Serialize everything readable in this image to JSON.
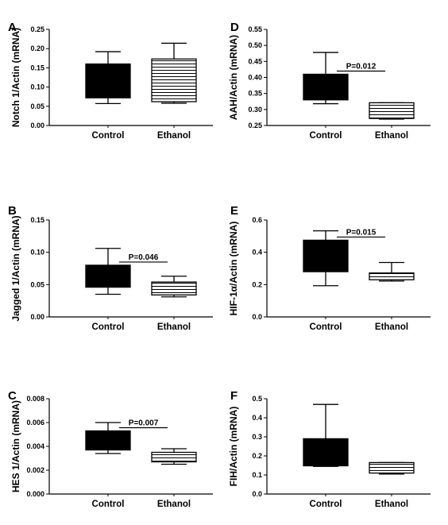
{
  "chart_data": [
    {
      "panel": "A",
      "type": "box",
      "ylabel": "Notch 1/Actin (mRNA)",
      "ylim": [
        0,
        0.25
      ],
      "yticks": [
        "0.00",
        "0.05",
        "0.10",
        "0.15",
        "0.20",
        "0.25"
      ],
      "categories": [
        "Control",
        "Ethanol"
      ],
      "boxes": [
        {
          "category": "Control",
          "whisker_low": 0.057,
          "q1": 0.072,
          "q3": 0.16,
          "whisker_high": 0.192,
          "fill": "solid"
        },
        {
          "category": "Ethanol",
          "whisker_low": 0.058,
          "q1": 0.062,
          "q3": 0.173,
          "whisker_high": 0.214,
          "fill": "striped"
        }
      ],
      "annotation": null
    },
    {
      "panel": "D",
      "type": "box",
      "ylabel": "AAH/Actin (mRNA)",
      "ylim": [
        0.25,
        0.55
      ],
      "yticks": [
        "0.25",
        "0.30",
        "0.35",
        "0.40",
        "0.45",
        "0.50",
        "0.55"
      ],
      "categories": [
        "Control",
        "Ethanol"
      ],
      "boxes": [
        {
          "category": "Control",
          "whisker_low": 0.318,
          "q1": 0.33,
          "q3": 0.41,
          "whisker_high": 0.478,
          "fill": "solid"
        },
        {
          "category": "Ethanol",
          "whisker_low": 0.27,
          "q1": 0.272,
          "q3": 0.321,
          "whisker_high": 0.321,
          "fill": "striped"
        }
      ],
      "annotation": "P=0.012"
    },
    {
      "panel": "B",
      "type": "box",
      "ylabel": "Jagged 1/Actin (mRNA)",
      "ylim": [
        0,
        0.15
      ],
      "yticks": [
        "0.00",
        "0.05",
        "0.10",
        "0.15"
      ],
      "categories": [
        "Control",
        "Ethanol"
      ],
      "boxes": [
        {
          "category": "Control",
          "whisker_low": 0.035,
          "q1": 0.046,
          "q3": 0.08,
          "whisker_high": 0.106,
          "fill": "solid"
        },
        {
          "category": "Ethanol",
          "whisker_low": 0.031,
          "q1": 0.034,
          "q3": 0.054,
          "whisker_high": 0.063,
          "fill": "striped"
        }
      ],
      "annotation": "P=0.046"
    },
    {
      "panel": "E",
      "type": "box",
      "ylabel": "HIF-1α/Actin (mRNA)",
      "ylim": [
        0,
        0.6
      ],
      "yticks": [
        "0.0",
        "0.2",
        "0.4",
        "0.6"
      ],
      "categories": [
        "Control",
        "Ethanol"
      ],
      "boxes": [
        {
          "category": "Control",
          "whisker_low": 0.193,
          "q1": 0.28,
          "q3": 0.475,
          "whisker_high": 0.533,
          "fill": "solid"
        },
        {
          "category": "Ethanol",
          "whisker_low": 0.222,
          "q1": 0.23,
          "q3": 0.272,
          "whisker_high": 0.337,
          "fill": "striped"
        }
      ],
      "annotation": "P=0.015"
    },
    {
      "panel": "C",
      "type": "box",
      "ylabel": "HES 1/Actin (mRNA)",
      "ylim": [
        0,
        0.008
      ],
      "yticks": [
        "0.000",
        "0.002",
        "0.004",
        "0.006",
        "0.008"
      ],
      "categories": [
        "Control",
        "Ethanol"
      ],
      "boxes": [
        {
          "category": "Control",
          "whisker_low": 0.0034,
          "q1": 0.0037,
          "q3": 0.0053,
          "whisker_high": 0.006,
          "fill": "solid"
        },
        {
          "category": "Ethanol",
          "whisker_low": 0.0025,
          "q1": 0.0027,
          "q3": 0.0035,
          "whisker_high": 0.0038,
          "fill": "striped"
        }
      ],
      "annotation": "P=0.007"
    },
    {
      "panel": "F",
      "type": "box",
      "ylabel": "FIH/Actin (mRNA)",
      "ylim": [
        0,
        0.5
      ],
      "yticks": [
        "0.0",
        "0.1",
        "0.2",
        "0.3",
        "0.4",
        "0.5"
      ],
      "categories": [
        "Control",
        "Ethanol"
      ],
      "boxes": [
        {
          "category": "Control",
          "whisker_low": 0.145,
          "q1": 0.148,
          "q3": 0.29,
          "whisker_high": 0.47,
          "fill": "solid"
        },
        {
          "category": "Ethanol",
          "whisker_low": 0.105,
          "q1": 0.11,
          "q3": 0.165,
          "whisker_high": 0.165,
          "fill": "striped"
        }
      ],
      "annotation": null
    }
  ]
}
